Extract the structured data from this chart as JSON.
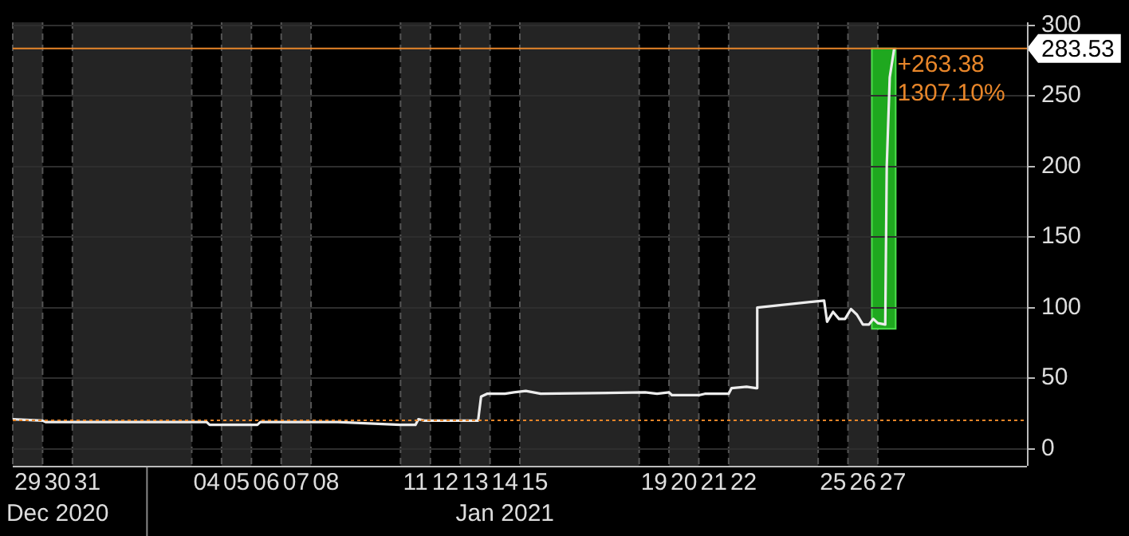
{
  "chart_data": {
    "type": "line",
    "x": [
      "2020-12-29T00:00",
      "2020-12-30T00:00",
      "2020-12-30T02:24",
      "2020-12-31T00:00",
      "2021-01-04T12:00",
      "2021-01-04T14:24",
      "2021-01-06T04:48",
      "2021-01-06T07:12",
      "2021-01-07T12:00",
      "2021-01-08T21:36",
      "2021-01-11T00:00",
      "2021-01-11T12:00",
      "2021-01-11T14:24",
      "2021-01-11T19:12",
      "2021-01-12T12:00",
      "2021-01-13T14:24",
      "2021-01-13T16:48",
      "2021-01-13T21:36",
      "2021-01-14T12:00",
      "2021-01-14T19:12",
      "2021-01-15T04:48",
      "2021-01-15T16:48",
      "2021-01-19T04:48",
      "2021-01-19T14:24",
      "2021-01-20T00:00",
      "2021-01-20T02:24",
      "2021-01-21T00:00",
      "2021-01-21T04:48",
      "2021-01-22T00:00",
      "2021-01-22T02:24",
      "2021-01-22T14:24",
      "2021-01-22T22:00",
      "2021-01-22T23:00",
      "2021-01-25T04:48",
      "2021-01-25T07:12",
      "2021-01-25T12:00",
      "2021-01-25T16:48",
      "2021-01-25T21:36",
      "2021-01-26T02:24",
      "2021-01-26T07:12",
      "2021-01-26T12:00",
      "2021-01-26T16:48",
      "2021-01-26T20:24",
      "2021-01-27T00:00",
      "2021-01-27T06:00",
      "2021-01-27T07:12",
      "2021-01-27T09:36",
      "2021-01-27T13:12"
    ],
    "series": [
      {
        "color": "#ececec",
        "values": [
          21,
          20,
          19,
          19,
          19,
          17,
          17,
          19,
          19,
          19,
          17,
          17,
          21,
          20,
          20,
          20,
          37,
          39,
          39,
          40,
          41,
          39,
          40,
          39,
          40,
          38,
          38,
          39,
          39,
          43,
          44,
          43,
          100,
          105,
          90,
          97,
          92,
          92,
          99,
          95,
          88,
          88,
          92,
          89,
          88,
          200,
          263,
          283.53
        ]
      }
    ],
    "xlim": [
      "2020-12-29T00:00",
      "2021-02-01T00:00"
    ],
    "xticks": [
      {
        "value": "2020-12-29T12:00",
        "label": "29"
      },
      {
        "value": "2020-12-30T12:00",
        "label": "30"
      },
      {
        "value": "2020-12-31T12:00",
        "label": "31"
      },
      {
        "value": "2021-01-04T12:00",
        "label": "04"
      },
      {
        "value": "2021-01-05T12:00",
        "label": "05"
      },
      {
        "value": "2021-01-06T12:00",
        "label": "06"
      },
      {
        "value": "2021-01-07T12:00",
        "label": "07"
      },
      {
        "value": "2021-01-08T12:00",
        "label": "08"
      },
      {
        "value": "2021-01-11T12:00",
        "label": "11"
      },
      {
        "value": "2021-01-12T12:00",
        "label": "12"
      },
      {
        "value": "2021-01-13T12:00",
        "label": "13"
      },
      {
        "value": "2021-01-14T12:00",
        "label": "14"
      },
      {
        "value": "2021-01-15T12:00",
        "label": "15"
      },
      {
        "value": "2021-01-19T12:00",
        "label": "19"
      },
      {
        "value": "2021-01-20T12:00",
        "label": "20"
      },
      {
        "value": "2021-01-21T12:00",
        "label": "21"
      },
      {
        "value": "2021-01-22T12:00",
        "label": "22"
      },
      {
        "value": "2021-01-25T12:00",
        "label": "25"
      },
      {
        "value": "2021-01-26T12:00",
        "label": "26"
      },
      {
        "value": "2021-01-27T12:00",
        "label": "27"
      }
    ],
    "ylim": [
      -12,
      302
    ],
    "yticks": [
      0,
      50,
      100,
      150,
      200,
      250,
      300
    ],
    "grid": "y",
    "marker": "none",
    "ref_lines": [
      {
        "axis": "y",
        "value": 20.15,
        "color": "#e8862a",
        "line_style": "dotted"
      },
      {
        "axis": "y",
        "value": 283.53,
        "label": "283.53",
        "color": "#e8862a",
        "line_style": "solid"
      }
    ],
    "bands": [
      {
        "axis": "x",
        "from": "2020-12-29T00:00",
        "to": "2020-12-30T00:00",
        "color": "#242424"
      },
      {
        "axis": "x",
        "from": "2020-12-31T00:00",
        "to": "2021-01-04T00:00",
        "color": "#242424"
      },
      {
        "axis": "x",
        "from": "2021-01-05T00:00",
        "to": "2021-01-06T00:00",
        "color": "#242424"
      },
      {
        "axis": "x",
        "from": "2021-01-07T00:00",
        "to": "2021-01-08T00:00",
        "color": "#242424"
      },
      {
        "axis": "x",
        "from": "2021-01-11T00:00",
        "to": "2021-01-12T00:00",
        "color": "#242424"
      },
      {
        "axis": "x",
        "from": "2021-01-13T00:00",
        "to": "2021-01-14T00:00",
        "color": "#242424"
      },
      {
        "axis": "x",
        "from": "2021-01-15T00:00",
        "to": "2021-01-19T00:00",
        "color": "#242424"
      },
      {
        "axis": "x",
        "from": "2021-01-20T00:00",
        "to": "2021-01-21T00:00",
        "color": "#242424"
      },
      {
        "axis": "x",
        "from": "2021-01-22T00:00",
        "to": "2021-01-25T00:00",
        "color": "#242424"
      },
      {
        "axis": "x",
        "from": "2021-01-26T00:00",
        "to": "2021-01-27T00:00",
        "color": "#242424"
      },
      {
        "axis": "x",
        "from": "2021-01-26T19:12",
        "to": "2021-01-27T14:24",
        "color": "#1fa81f"
      }
    ],
    "annotations": [
      {
        "text": "+263.38",
        "x": "2021-01-27T13:12",
        "y": 283.53
      },
      {
        "text": "1307.10%",
        "x": "2021-01-27T13:12",
        "y": 283.53
      },
      "Dec 2020",
      "Jan 2021"
    ]
  }
}
